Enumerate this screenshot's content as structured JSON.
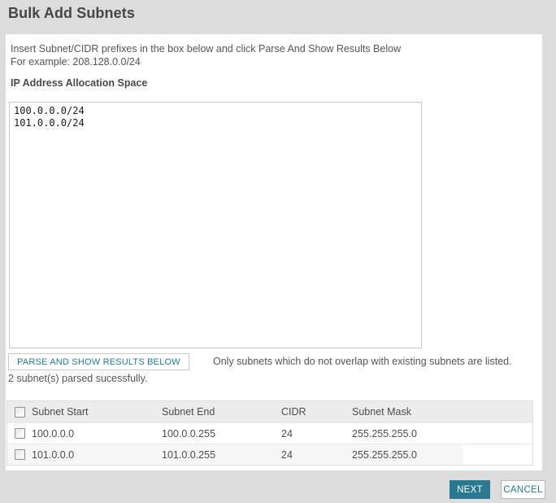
{
  "page": {
    "title": "Bulk Add Subnets"
  },
  "instructions": {
    "line1": "Insert Subnet/CIDR prefixes in the box below and click Parse And Show Results Below",
    "line2": "For example: 208.128.0.0/24"
  },
  "allocation": {
    "label": "IP Address Allocation Space",
    "textarea_value": "100.0.0.0/24\n101.0.0.0/24"
  },
  "parse": {
    "button_label": "PARSE AND SHOW RESULTS BELOW",
    "note": "Only subnets which do not overlap with existing subnets are listed.",
    "status": "2 subnet(s) parsed sucessfully."
  },
  "results_table": {
    "columns": {
      "start": "Subnet Start",
      "end": "Subnet End",
      "cidr": "CIDR",
      "mask": "Subnet Mask"
    },
    "rows": [
      {
        "subnet_start": "100.0.0.0",
        "subnet_end": "100.0.0.255",
        "cidr": "24",
        "subnet_mask": "255.255.255.0",
        "checked": false
      },
      {
        "subnet_start": "101.0.0.0",
        "subnet_end": "101.0.0.255",
        "cidr": "24",
        "subnet_mask": "255.255.255.0",
        "checked": false
      }
    ]
  },
  "footer": {
    "next_label": "NEXT",
    "cancel_label": "CANCEL"
  },
  "colors": {
    "accent_teal": "#2a7991",
    "page_background": "#dcdcdc",
    "panel_background": "#ffffff",
    "text_primary": "#454545",
    "text_secondary": "#565656"
  }
}
